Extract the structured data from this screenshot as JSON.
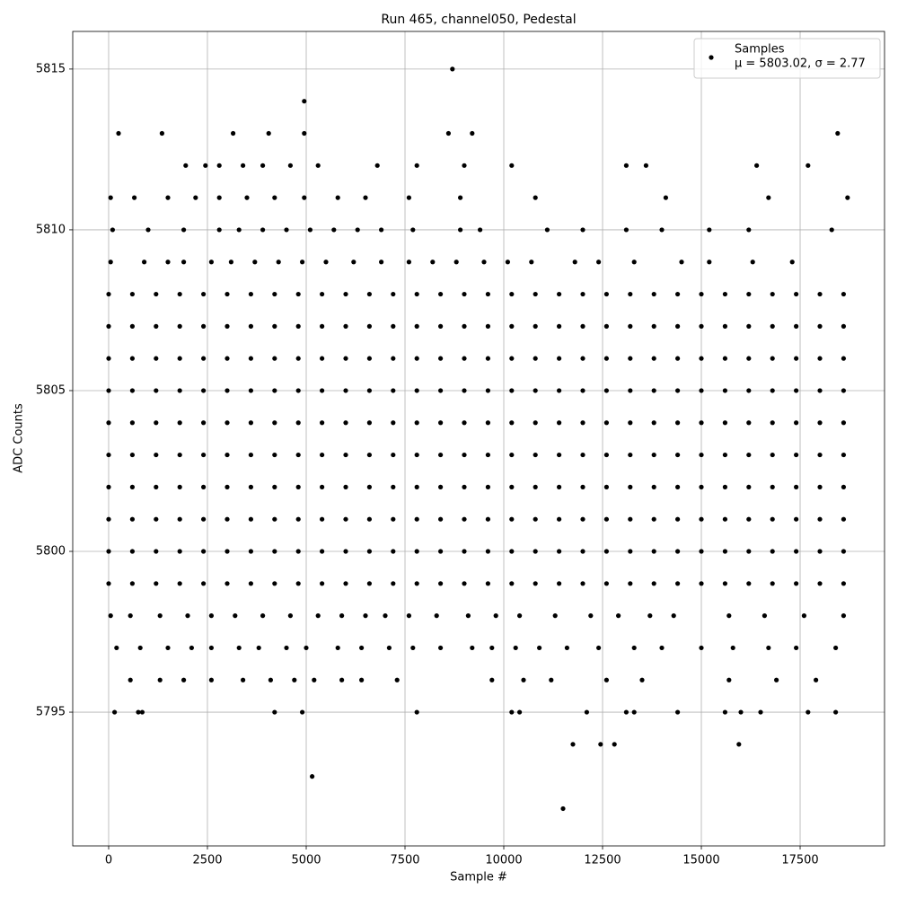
{
  "chart_data": {
    "type": "scatter",
    "title": "Run 465, channel050, Pedestal",
    "xlabel": "Sample #",
    "ylabel": "ADC Counts",
    "xlim": [
      -909,
      19636
    ],
    "ylim": [
      5790.84,
      5816.17
    ],
    "xticks": [
      0,
      2500,
      5000,
      7500,
      10000,
      12500,
      15000,
      17500
    ],
    "yticks": [
      5795,
      5800,
      5805,
      5810,
      5815
    ],
    "grid": true,
    "legend_position": "upper right",
    "legend_note": "μ = 5803.02, σ = 2.77",
    "series": [
      {
        "name": "Samples",
        "color": "#000000",
        "x": [
          0,
          600,
          1200,
          1800,
          2400,
          3000,
          3600,
          4200,
          4800,
          5400,
          6000,
          6600,
          7200,
          7800,
          8400,
          9000,
          9600,
          10200,
          10800,
          11400,
          12000,
          12600,
          13200,
          13800,
          14400,
          15000,
          15600,
          16200,
          16800,
          17400,
          18000,
          18600,
          0,
          600,
          1200,
          1800,
          2400,
          3000,
          3600,
          4200,
          4800,
          5400,
          6000,
          6600,
          7200,
          7800,
          8400,
          9000,
          9600,
          10200,
          10800,
          11400,
          12000,
          12600,
          13200,
          13800,
          14400,
          15000,
          15600,
          16200,
          16800,
          17400,
          18000,
          18600,
          0,
          600,
          1200,
          1800,
          2400,
          3000,
          3600,
          4200,
          4800,
          5400,
          6000,
          6600,
          7200,
          7800,
          8400,
          9000,
          9600,
          10200,
          10800,
          11400,
          12000,
          12600,
          13200,
          13800,
          14400,
          15000,
          15600,
          16200,
          16800,
          17400,
          18000,
          18600,
          0,
          600,
          1200,
          1800,
          2400,
          3000,
          3600,
          4200,
          4800,
          5400,
          6000,
          6600,
          7200,
          7800,
          8400,
          9000,
          9600,
          10200,
          10800,
          11400,
          12000,
          12600,
          13200,
          13800,
          14400,
          15000,
          15600,
          16200,
          16800,
          17400,
          18000,
          18600,
          0,
          600,
          1200,
          1800,
          2400,
          3000,
          3600,
          4200,
          4800,
          5400,
          6000,
          6600,
          7200,
          7800,
          8400,
          9000,
          9600,
          10200,
          10800,
          11400,
          12000,
          12600,
          13200,
          13800,
          14400,
          15000,
          15600,
          16200,
          16800,
          17400,
          18000,
          18600,
          0,
          600,
          1200,
          1800,
          2400,
          3000,
          3600,
          4200,
          4800,
          5400,
          6000,
          6600,
          7200,
          7800,
          8400,
          9000,
          9600,
          10200,
          10800,
          11400,
          12000,
          12600,
          13200,
          13800,
          14400,
          15000,
          15600,
          16200,
          16800,
          17400,
          18000,
          18600,
          0,
          600,
          1200,
          1800,
          2400,
          3000,
          3600,
          4200,
          4800,
          5400,
          6000,
          6600,
          7200,
          7800,
          8400,
          9000,
          9600,
          10200,
          10800,
          11400,
          12000,
          12600,
          13200,
          13800,
          14400,
          15000,
          15600,
          16200,
          16800,
          17400,
          18000,
          18600,
          0,
          600,
          1200,
          1800,
          2400,
          3000,
          3600,
          4200,
          4800,
          5400,
          6000,
          6600,
          7200,
          7800,
          8400,
          9000,
          9600,
          10200,
          10800,
          11400,
          12000,
          12600,
          13200,
          13800,
          14400,
          15000,
          15600,
          16200,
          16800,
          17400,
          18000,
          18600,
          0,
          600,
          1200,
          1800,
          2400,
          3000,
          3600,
          4200,
          4800,
          5400,
          6000,
          6600,
          7200,
          7800,
          8400,
          9000,
          9600,
          10200,
          10800,
          11400,
          12000,
          12600,
          13200,
          13800,
          14400,
          15000,
          15600,
          16200,
          16800,
          17400,
          18000,
          18600,
          0,
          600,
          1200,
          1800,
          2400,
          3000,
          3600,
          4200,
          4800,
          5400,
          6000,
          6600,
          7200,
          7800,
          8400,
          9000,
          9600,
          10200,
          10800,
          11400,
          12000,
          12600,
          13200,
          13800,
          14400,
          15000,
          15600,
          16200,
          16800,
          17400,
          18000,
          18600,
          50,
          900,
          1500,
          1900,
          2600,
          3100,
          3700,
          4300,
          4900,
          5500,
          6200,
          6900,
          7600,
          8200,
          8800,
          9500,
          10100,
          10700,
          11800,
          12400,
          13300,
          14500,
          15200,
          16300,
          17300,
          100,
          1000,
          1900,
          2800,
          3300,
          3900,
          4500,
          5100,
          5700,
          6300,
          6900,
          7700,
          8900,
          9400,
          11100,
          12000,
          13100,
          14000,
          15200,
          16200,
          18300,
          50,
          650,
          1500,
          2200,
          2800,
          3500,
          4200,
          4950,
          5800,
          6500,
          7600,
          8900,
          10800,
          14100,
          16700,
          18700,
          1950,
          2450,
          2800,
          3400,
          3900,
          4600,
          5300,
          6800,
          7800,
          9000,
          10200,
          13100,
          13600,
          16400,
          17700,
          250,
          1350,
          3150,
          4050,
          4950,
          8600,
          9200,
          18450,
          4950,
          8700,
          50,
          550,
          1300,
          2000,
          2600,
          3200,
          3900,
          4600,
          5300,
          5900,
          6500,
          7000,
          7600,
          8300,
          9100,
          9800,
          10400,
          11300,
          12200,
          12900,
          13700,
          14300,
          15700,
          16600,
          17600,
          18600,
          200,
          800,
          1500,
          2100,
          2600,
          3300,
          3800,
          4500,
          5000,
          5800,
          6400,
          7100,
          7700,
          8400,
          9200,
          9700,
          10300,
          10900,
          11600,
          12400,
          13300,
          14000,
          15000,
          15800,
          16700,
          17400,
          18400,
          550,
          1300,
          1900,
          2600,
          3400,
          4100,
          4700,
          5200,
          5900,
          6400,
          7300,
          9700,
          10500,
          11200,
          12600,
          13500,
          15700,
          16900,
          17900,
          150,
          750,
          850,
          4200,
          4900,
          7800,
          10200,
          10400,
          12100,
          13100,
          13300,
          14400,
          15600,
          16000,
          16500,
          17700,
          18400,
          11750,
          12450,
          12800,
          15950,
          5150,
          11500
        ],
        "values": [
          5808,
          5808,
          5808,
          5808,
          5808,
          5808,
          5808,
          5808,
          5808,
          5808,
          5808,
          5808,
          5808,
          5808,
          5808,
          5808,
          5808,
          5808,
          5808,
          5808,
          5808,
          5808,
          5808,
          5808,
          5808,
          5808,
          5808,
          5808,
          5808,
          5808,
          5808,
          5808,
          5807,
          5807,
          5807,
          5807,
          5807,
          5807,
          5807,
          5807,
          5807,
          5807,
          5807,
          5807,
          5807,
          5807,
          5807,
          5807,
          5807,
          5807,
          5807,
          5807,
          5807,
          5807,
          5807,
          5807,
          5807,
          5807,
          5807,
          5807,
          5807,
          5807,
          5807,
          5807,
          5806,
          5806,
          5806,
          5806,
          5806,
          5806,
          5806,
          5806,
          5806,
          5806,
          5806,
          5806,
          5806,
          5806,
          5806,
          5806,
          5806,
          5806,
          5806,
          5806,
          5806,
          5806,
          5806,
          5806,
          5806,
          5806,
          5806,
          5806,
          5806,
          5806,
          5806,
          5806,
          5805,
          5805,
          5805,
          5805,
          5805,
          5805,
          5805,
          5805,
          5805,
          5805,
          5805,
          5805,
          5805,
          5805,
          5805,
          5805,
          5805,
          5805,
          5805,
          5805,
          5805,
          5805,
          5805,
          5805,
          5805,
          5805,
          5805,
          5805,
          5805,
          5805,
          5805,
          5805,
          5804,
          5804,
          5804,
          5804,
          5804,
          5804,
          5804,
          5804,
          5804,
          5804,
          5804,
          5804,
          5804,
          5804,
          5804,
          5804,
          5804,
          5804,
          5804,
          5804,
          5804,
          5804,
          5804,
          5804,
          5804,
          5804,
          5804,
          5804,
          5804,
          5804,
          5804,
          5804,
          5803,
          5803,
          5803,
          5803,
          5803,
          5803,
          5803,
          5803,
          5803,
          5803,
          5803,
          5803,
          5803,
          5803,
          5803,
          5803,
          5803,
          5803,
          5803,
          5803,
          5803,
          5803,
          5803,
          5803,
          5803,
          5803,
          5803,
          5803,
          5803,
          5803,
          5803,
          5803,
          5802,
          5802,
          5802,
          5802,
          5802,
          5802,
          5802,
          5802,
          5802,
          5802,
          5802,
          5802,
          5802,
          5802,
          5802,
          5802,
          5802,
          5802,
          5802,
          5802,
          5802,
          5802,
          5802,
          5802,
          5802,
          5802,
          5802,
          5802,
          5802,
          5802,
          5802,
          5802,
          5801,
          5801,
          5801,
          5801,
          5801,
          5801,
          5801,
          5801,
          5801,
          5801,
          5801,
          5801,
          5801,
          5801,
          5801,
          5801,
          5801,
          5801,
          5801,
          5801,
          5801,
          5801,
          5801,
          5801,
          5801,
          5801,
          5801,
          5801,
          5801,
          5801,
          5801,
          5801,
          5800,
          5800,
          5800,
          5800,
          5800,
          5800,
          5800,
          5800,
          5800,
          5800,
          5800,
          5800,
          5800,
          5800,
          5800,
          5800,
          5800,
          5800,
          5800,
          5800,
          5800,
          5800,
          5800,
          5800,
          5800,
          5800,
          5800,
          5800,
          5800,
          5800,
          5800,
          5800,
          5799,
          5799,
          5799,
          5799,
          5799,
          5799,
          5799,
          5799,
          5799,
          5799,
          5799,
          5799,
          5799,
          5799,
          5799,
          5799,
          5799,
          5799,
          5799,
          5799,
          5799,
          5799,
          5799,
          5799,
          5799,
          5799,
          5799,
          5799,
          5799,
          5799,
          5799,
          5799,
          5809,
          5809,
          5809,
          5809,
          5809,
          5809,
          5809,
          5809,
          5809,
          5809,
          5809,
          5809,
          5809,
          5809,
          5809,
          5809,
          5809,
          5809,
          5809,
          5809,
          5809,
          5809,
          5809,
          5809,
          5809,
          5810,
          5810,
          5810,
          5810,
          5810,
          5810,
          5810,
          5810,
          5810,
          5810,
          5810,
          5810,
          5810,
          5810,
          5810,
          5810,
          5810,
          5810,
          5810,
          5810,
          5810,
          5811,
          5811,
          5811,
          5811,
          5811,
          5811,
          5811,
          5811,
          5811,
          5811,
          5811,
          5811,
          5811,
          5811,
          5811,
          5811,
          5812,
          5812,
          5812,
          5812,
          5812,
          5812,
          5812,
          5812,
          5812,
          5812,
          5812,
          5812,
          5812,
          5812,
          5812,
          5813,
          5813,
          5813,
          5813,
          5813,
          5813,
          5813,
          5813,
          5814,
          5815,
          5798,
          5798,
          5798,
          5798,
          5798,
          5798,
          5798,
          5798,
          5798,
          5798,
          5798,
          5798,
          5798,
          5798,
          5798,
          5798,
          5798,
          5798,
          5798,
          5798,
          5798,
          5798,
          5798,
          5798,
          5798,
          5798,
          5797,
          5797,
          5797,
          5797,
          5797,
          5797,
          5797,
          5797,
          5797,
          5797,
          5797,
          5797,
          5797,
          5797,
          5797,
          5797,
          5797,
          5797,
          5797,
          5797,
          5797,
          5797,
          5797,
          5797,
          5797,
          5797,
          5797,
          5796,
          5796,
          5796,
          5796,
          5796,
          5796,
          5796,
          5796,
          5796,
          5796,
          5796,
          5796,
          5796,
          5796,
          5796,
          5796,
          5796,
          5796,
          5796,
          5795,
          5795,
          5795,
          5795,
          5795,
          5795,
          5795,
          5795,
          5795,
          5795,
          5795,
          5795,
          5795,
          5795,
          5795,
          5795,
          5795,
          5794,
          5794,
          5794,
          5794,
          5793,
          5792
        ]
      }
    ]
  }
}
